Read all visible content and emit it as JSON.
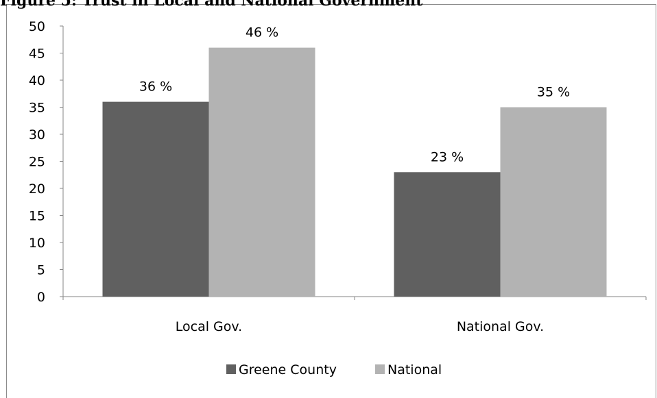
{
  "figure_title": "Figure 5: Trust in Local and National Government",
  "chart_data": {
    "type": "bar",
    "title": "",
    "categories": [
      "Local Gov.",
      "National Gov."
    ],
    "series": [
      {
        "name": "Greene County",
        "values": [
          36,
          23
        ],
        "labels": [
          "36 %",
          "23 %"
        ],
        "color": "#606060"
      },
      {
        "name": "National",
        "values": [
          46,
          35
        ],
        "labels": [
          "46 %",
          "35 %"
        ],
        "color": "#b3b3b3"
      }
    ],
    "xlabel": "",
    "ylabel": "",
    "ylim": [
      0,
      50
    ],
    "yticks": [
      "0",
      "5",
      "10",
      "15",
      "20",
      "25",
      "30",
      "35",
      "40",
      "45",
      "50"
    ],
    "grid": false,
    "legend_position": "bottom"
  }
}
